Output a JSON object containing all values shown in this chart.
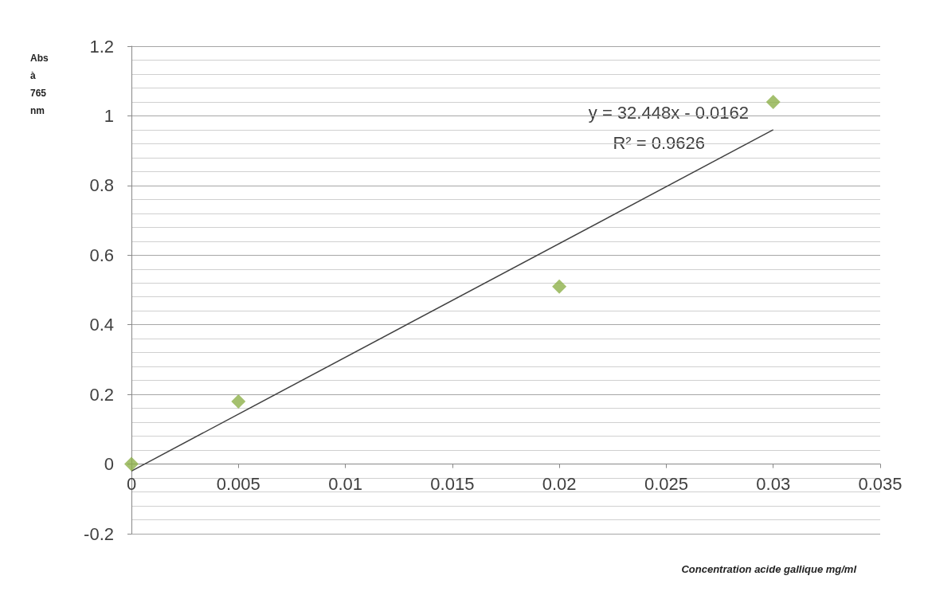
{
  "chart_data": {
    "type": "scatter",
    "xlabel": "Concentration acide gallique mg/ml",
    "ylabel": "Abs à 765 nm",
    "series": [
      {
        "color": "#8db04a",
        "marker": "diamond",
        "x": [
          0,
          0.005,
          0.02,
          0.03
        ],
        "values": [
          0,
          0.18,
          0.51,
          1.04
        ]
      },
      {
        "type": "line",
        "color": "#404040",
        "marker": "none",
        "x": [
          0,
          0.03
        ],
        "values": [
          -0.02,
          0.96
        ]
      }
    ],
    "xlim": [
      0,
      0.035
    ],
    "xticks": [
      0,
      0.005,
      0.01,
      0.015,
      0.02,
      0.025,
      0.03,
      0.035
    ],
    "ylim": [
      -0.2,
      1.2
    ],
    "yticks": [
      -0.2,
      0,
      0.2,
      0.4,
      0.6,
      0.8,
      1,
      1.2
    ],
    "grid": "y",
    "annotations": [
      "y = 32.448x - 0.0162",
      "R² = 0.9626"
    ]
  }
}
